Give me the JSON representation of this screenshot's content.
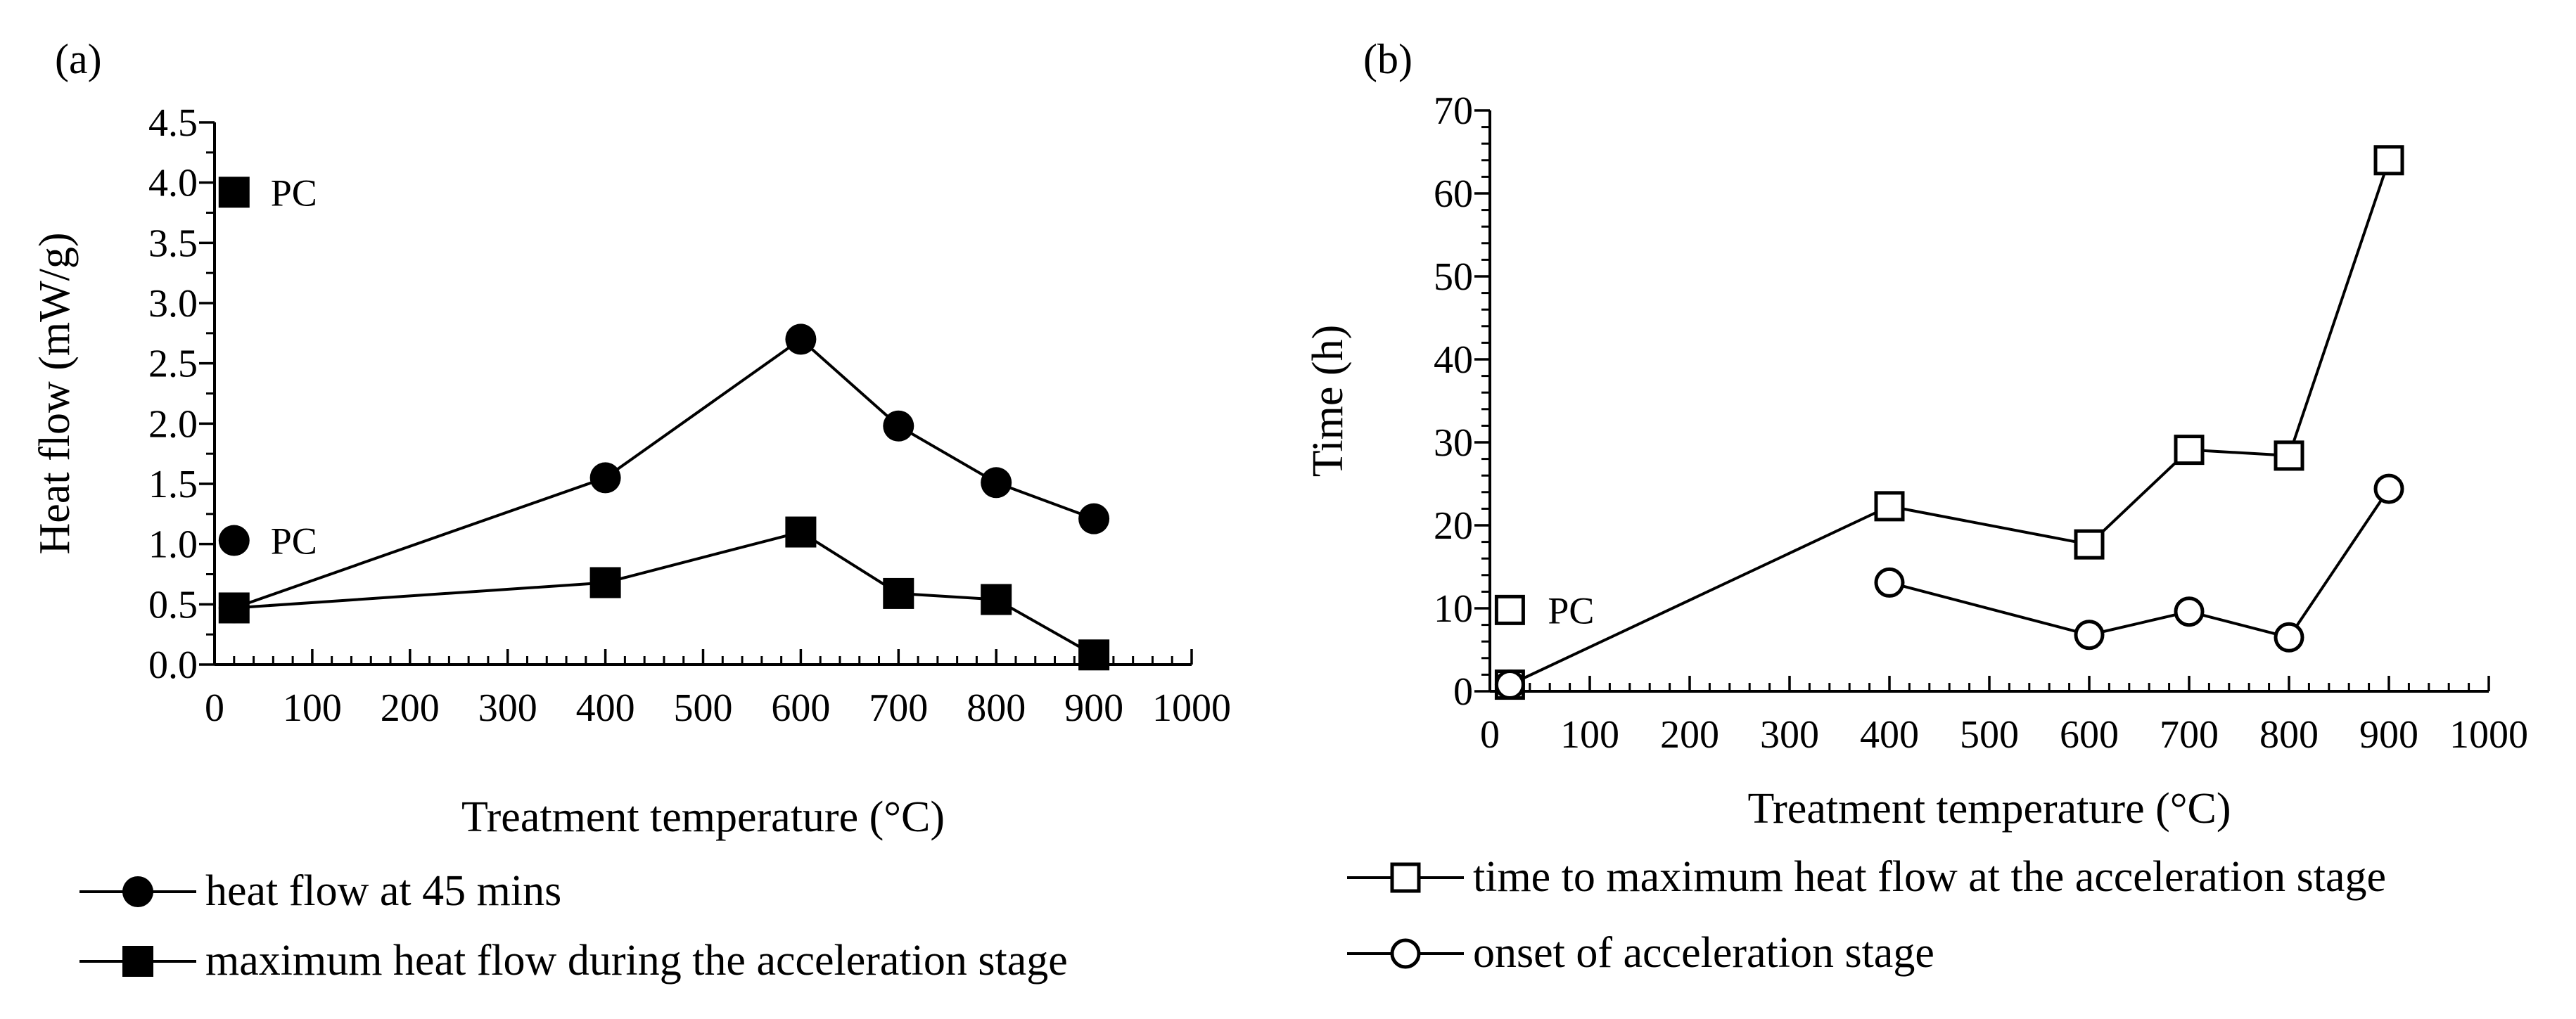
{
  "chart_data": [
    {
      "panel_label": "(a)",
      "type": "line",
      "xlabel": "Treatment temperature (°C)",
      "ylabel": "Heat flow (mW/g)",
      "xlim": [
        0,
        1000
      ],
      "ylim": [
        0,
        4.5
      ],
      "xticks": [
        "0",
        "100",
        "200",
        "300",
        "400",
        "500",
        "600",
        "700",
        "800",
        "900",
        "1000"
      ],
      "yticks": [
        "0.0",
        "0.5",
        "1.0",
        "1.5",
        "2.0",
        "2.5",
        "3.0",
        "3.5",
        "4.0",
        "4.5"
      ],
      "series": [
        {
          "name": "heat flow at 45 mins",
          "marker": "filled-circle",
          "x": [
            20,
            400,
            600,
            700,
            800,
            900
          ],
          "values": [
            0.47,
            1.55,
            2.7,
            1.98,
            1.51,
            1.21
          ]
        },
        {
          "name": "maximum heat flow during the acceleration stage",
          "marker": "filled-square",
          "x": [
            20,
            400,
            600,
            700,
            800,
            900
          ],
          "values": [
            0.47,
            0.68,
            1.1,
            0.59,
            0.54,
            0.08
          ]
        }
      ],
      "annotations": [
        {
          "text": "PC",
          "marker": "filled-square",
          "x": 20,
          "y": 3.92
        },
        {
          "text": "PC",
          "marker": "filled-circle",
          "x": 20,
          "y": 1.03
        }
      ]
    },
    {
      "panel_label": "(b)",
      "type": "line",
      "xlabel": "Treatment temperature (°C)",
      "ylabel": "Time (h)",
      "xlim": [
        0,
        1000
      ],
      "ylim": [
        0,
        70
      ],
      "xticks": [
        "0",
        "100",
        "200",
        "300",
        "400",
        "500",
        "600",
        "700",
        "800",
        "900",
        "1000"
      ],
      "yticks": [
        "0",
        "10",
        "20",
        "30",
        "40",
        "50",
        "60",
        "70"
      ],
      "series": [
        {
          "name": "time to maximum heat flow at the acceleration stage",
          "marker": "open-square",
          "x": [
            20,
            400,
            600,
            700,
            800,
            900
          ],
          "values": [
            0.8,
            22.3,
            17.7,
            29.1,
            28.4,
            64.0
          ]
        },
        {
          "name": "onset of acceleration stage",
          "marker": "open-circle",
          "x": [
            400,
            600,
            700,
            800,
            900
          ],
          "values": [
            13.1,
            6.8,
            9.6,
            6.5,
            24.4
          ]
        }
      ],
      "annotations": [
        {
          "text": "PC",
          "marker": "open-square",
          "x": 20,
          "y": 9.8
        },
        {
          "text": "",
          "marker": "open-circle",
          "x": 20,
          "y": 0.8
        }
      ]
    }
  ]
}
